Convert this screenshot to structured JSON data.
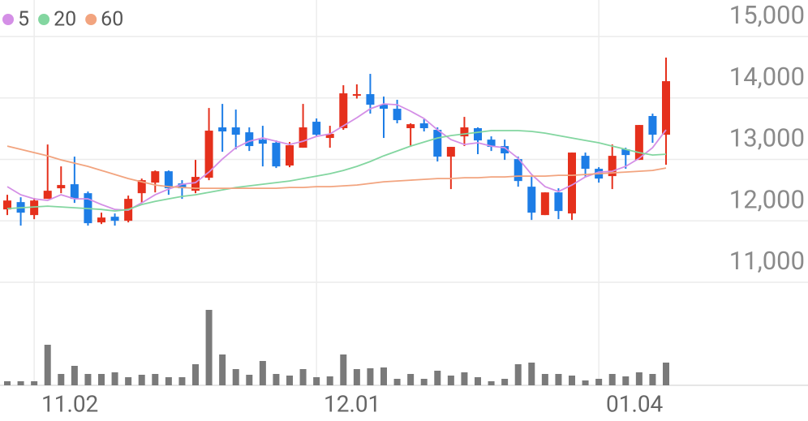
{
  "chart_data": {
    "type": "candlestick",
    "categories": [
      null,
      null,
      "11.02",
      null,
      null,
      null,
      null,
      null,
      null,
      null,
      null,
      null,
      null,
      null,
      null,
      null,
      null,
      null,
      null,
      null,
      null,
      null,
      null,
      "12.01",
      null,
      null,
      null,
      null,
      null,
      null,
      null,
      null,
      null,
      null,
      null,
      null,
      null,
      null,
      null,
      null,
      null,
      null,
      null,
      null,
      "01.04",
      null,
      null,
      null,
      null,
      null
    ],
    "open": [
      12186,
      12305,
      12094,
      12358,
      12530,
      12596,
      12450,
      11975,
      12067,
      12001,
      12450,
      12622,
      12807,
      12609,
      12490,
      12701,
      13521,
      13521,
      13441,
      13322,
      13270,
      12900,
      13190,
      13613,
      13349,
      13508,
      14036,
      14062,
      13890,
      13824,
      13508,
      13587,
      13481,
      13045,
      13375,
      13508,
      13322,
      13217,
      13005,
      12556,
      12094,
      12463,
      12120,
      13058,
      12847,
      12728,
      13164,
      12992,
      13706,
      13402
    ],
    "high": [
      12424,
      12384,
      12371,
      13243,
      12886,
      13045,
      12477,
      12133,
      12120,
      12411,
      12688,
      12820,
      12820,
      12662,
      12992,
      13837,
      13903,
      13811,
      13521,
      13547,
      13309,
      13283,
      13903,
      13666,
      13547,
      14207,
      14221,
      14392,
      14022,
      13970,
      13587,
      13653,
      13521,
      13204,
      13692,
      13521,
      13375,
      13322,
      13045,
      12715,
      12463,
      12530,
      13111,
      13111,
      12873,
      13243,
      13190,
      13560,
      13745,
      14657
    ],
    "low": [
      12094,
      11922,
      12028,
      12358,
      12450,
      12292,
      11922,
      11948,
      11922,
      11975,
      12292,
      12463,
      12424,
      12358,
      12450,
      12662,
      13124,
      13164,
      13137,
      12886,
      12860,
      12873,
      13190,
      13375,
      13190,
      13481,
      13990,
      13745,
      13349,
      13587,
      13204,
      13455,
      12966,
      12517,
      13217,
      13085,
      13137,
      12992,
      12556,
      12015,
      12094,
      12028,
      12015,
      12715,
      12622,
      12517,
      12847,
      12992,
      13270,
      12913
    ],
    "close": [
      12331,
      12133,
      12331,
      12490,
      12583,
      12358,
      11962,
      12054,
      12001,
      12358,
      12662,
      12807,
      12530,
      12530,
      12715,
      13468,
      13455,
      13402,
      13217,
      13256,
      12886,
      13230,
      13521,
      13402,
      13415,
      14075,
      14062,
      13890,
      13824,
      13639,
      13573,
      13508,
      13045,
      13204,
      13521,
      13309,
      13204,
      13098,
      12648,
      12133,
      12463,
      12160,
      13111,
      12847,
      12688,
      13058,
      13071,
      13560,
      13402,
      14273
    ],
    "volume": [
      5,
      5,
      5,
      50,
      14,
      24,
      14,
      14,
      16,
      10,
      13,
      14,
      10,
      10,
      26,
      93,
      38,
      20,
      13,
      30,
      14,
      12,
      20,
      10,
      11,
      38,
      20,
      21,
      22,
      8,
      14,
      8,
      18,
      12,
      16,
      10,
      5,
      8,
      26,
      28,
      14,
      14,
      12,
      6,
      8,
      14,
      11,
      16,
      14,
      28
    ],
    "series": [
      {
        "name": "5",
        "color": "#d48fe6",
        "values": [
          12556,
          12424,
          12358,
          12332,
          12424,
          12358,
          12358,
          12266,
          12186,
          12173,
          12292,
          12424,
          12517,
          12596,
          12622,
          12794,
          13005,
          13190,
          13296,
          13349,
          13296,
          13243,
          13296,
          13375,
          13415,
          13547,
          13679,
          13824,
          13903,
          13890,
          13785,
          13666,
          13481,
          13322,
          13243,
          13270,
          13217,
          13190,
          13019,
          12754,
          12556,
          12477,
          12583,
          12715,
          12794,
          12807,
          12886,
          13019,
          13190,
          13481
        ]
      },
      {
        "name": "20",
        "color": "#83d6a0",
        "values": [
          12200,
          12213,
          12226,
          12239,
          12226,
          12213,
          12200,
          12186,
          12160,
          12186,
          12266,
          12318,
          12358,
          12398,
          12424,
          12464,
          12503,
          12543,
          12569,
          12596,
          12622,
          12649,
          12688,
          12728,
          12767,
          12820,
          12886,
          12966,
          13058,
          13137,
          13217,
          13283,
          13349,
          13388,
          13415,
          13441,
          13468,
          13468,
          13468,
          13455,
          13428,
          13388,
          13349,
          13309,
          13270,
          13217,
          13164,
          13111,
          13071,
          13085
        ]
      },
      {
        "name": "60",
        "color": "#f2a47f",
        "values": [
          13217,
          13164,
          13111,
          13058,
          12992,
          12939,
          12886,
          12820,
          12754,
          12688,
          12635,
          12583,
          12556,
          12543,
          12530,
          12530,
          12530,
          12530,
          12530,
          12530,
          12530,
          12543,
          12543,
          12556,
          12556,
          12569,
          12583,
          12609,
          12635,
          12649,
          12662,
          12675,
          12688,
          12688,
          12701,
          12701,
          12715,
          12715,
          12728,
          12728,
          12728,
          12741,
          12741,
          12754,
          12767,
          12781,
          12794,
          12807,
          12820,
          12860
        ]
      }
    ],
    "up_color": "#e5301c",
    "down_color": "#1d7de6",
    "volume_color": "#7a7a7a",
    "ylim": [
      11000,
      15000
    ],
    "yticks": [
      {
        "value": 11000,
        "label": "11,000"
      },
      {
        "value": 12000,
        "label": "12,000"
      },
      {
        "value": 13000,
        "label": "13,000"
      },
      {
        "value": 14000,
        "label": "14,000"
      },
      {
        "value": 15000,
        "label": "15,000"
      }
    ],
    "grid": true
  }
}
